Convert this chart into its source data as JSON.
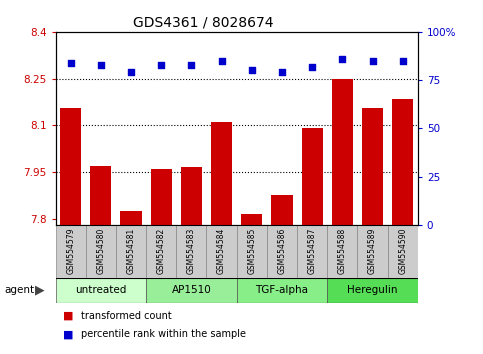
{
  "title": "GDS4361 / 8028674",
  "samples": [
    "GSM554579",
    "GSM554580",
    "GSM554581",
    "GSM554582",
    "GSM554583",
    "GSM554584",
    "GSM554585",
    "GSM554586",
    "GSM554587",
    "GSM554588",
    "GSM554589",
    "GSM554590"
  ],
  "bar_values": [
    8.155,
    7.97,
    7.825,
    7.96,
    7.965,
    8.11,
    7.815,
    7.875,
    8.09,
    8.25,
    8.155,
    8.185
  ],
  "percentile_values": [
    84,
    83,
    79,
    83,
    83,
    85,
    80,
    79,
    82,
    86,
    85,
    85
  ],
  "bar_color": "#cc0000",
  "dot_color": "#0000cc",
  "ylim_left": [
    7.78,
    8.4
  ],
  "ylim_right": [
    0,
    100
  ],
  "yticks_left": [
    7.8,
    7.95,
    8.1,
    8.25,
    8.4
  ],
  "ytick_labels_left": [
    "7.8",
    "7.95",
    "8.1",
    "8.25",
    "8.4"
  ],
  "yticks_right": [
    0,
    25,
    50,
    75,
    100
  ],
  "ytick_labels_right": [
    "0",
    "25",
    "50",
    "75",
    "100%"
  ],
  "grid_values": [
    7.95,
    8.1,
    8.25
  ],
  "agent_groups": [
    {
      "label": "untreated",
      "start": 0,
      "end": 3,
      "color": "#ccffcc"
    },
    {
      "label": "AP1510",
      "start": 3,
      "end": 6,
      "color": "#99ee99"
    },
    {
      "label": "TGF-alpha",
      "start": 6,
      "end": 9,
      "color": "#88ee88"
    },
    {
      "label": "Heregulin",
      "start": 9,
      "end": 12,
      "color": "#55dd55"
    }
  ],
  "agent_label": "agent",
  "legend_bar_label": "transformed count",
  "legend_dot_label": "percentile rank within the sample",
  "bar_width": 0.7,
  "fig_bg": "#ffffff",
  "ax_bg": "#ffffff",
  "sample_box_color": "#cccccc",
  "title_fontsize": 10,
  "tick_fontsize": 7.5,
  "label_fontsize": 7.5
}
